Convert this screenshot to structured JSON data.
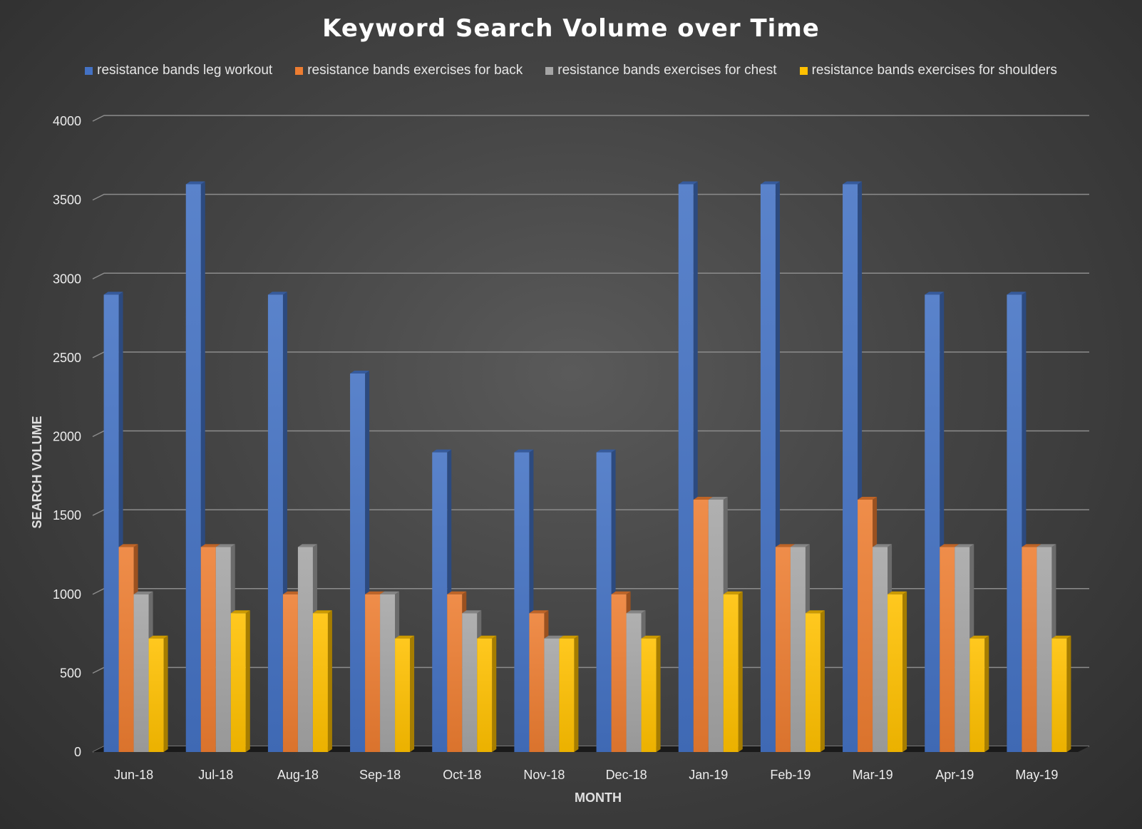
{
  "chart_data": {
    "type": "bar",
    "title": "Keyword Search Volume over Time",
    "xlabel": "MONTH",
    "ylabel": "SEARCH VOLUME",
    "ylim": [
      0,
      4000
    ],
    "yticks": [
      0,
      500,
      1000,
      1500,
      2000,
      2500,
      3000,
      3500,
      4000
    ],
    "grid": true,
    "legend_position": "top",
    "categories": [
      "Jun-18",
      "Jul-18",
      "Aug-18",
      "Sep-18",
      "Oct-18",
      "Nov-18",
      "Dec-18",
      "Jan-19",
      "Feb-19",
      "Mar-19",
      "Apr-19",
      "May-19"
    ],
    "series": [
      {
        "name": "resistance bands leg workout",
        "color": "#4472c4",
        "values": [
          2900,
          3600,
          2900,
          2400,
          1900,
          1900,
          1900,
          3600,
          3600,
          3600,
          2900,
          2900
        ]
      },
      {
        "name": "resistance bands exercises for back",
        "color": "#ed7d31",
        "values": [
          1300,
          1300,
          1000,
          1000,
          1000,
          880,
          1000,
          1600,
          1300,
          1600,
          1300,
          1300
        ]
      },
      {
        "name": "resistance bands exercises for chest",
        "color": "#a5a5a5",
        "values": [
          1000,
          1300,
          1300,
          1000,
          880,
          720,
          880,
          1600,
          1300,
          1300,
          1300,
          1300
        ]
      },
      {
        "name": "resistance bands exercises for shoulders",
        "color": "#ffc000",
        "values": [
          720,
          880,
          880,
          720,
          720,
          720,
          720,
          1000,
          880,
          1000,
          720,
          720
        ]
      }
    ]
  }
}
